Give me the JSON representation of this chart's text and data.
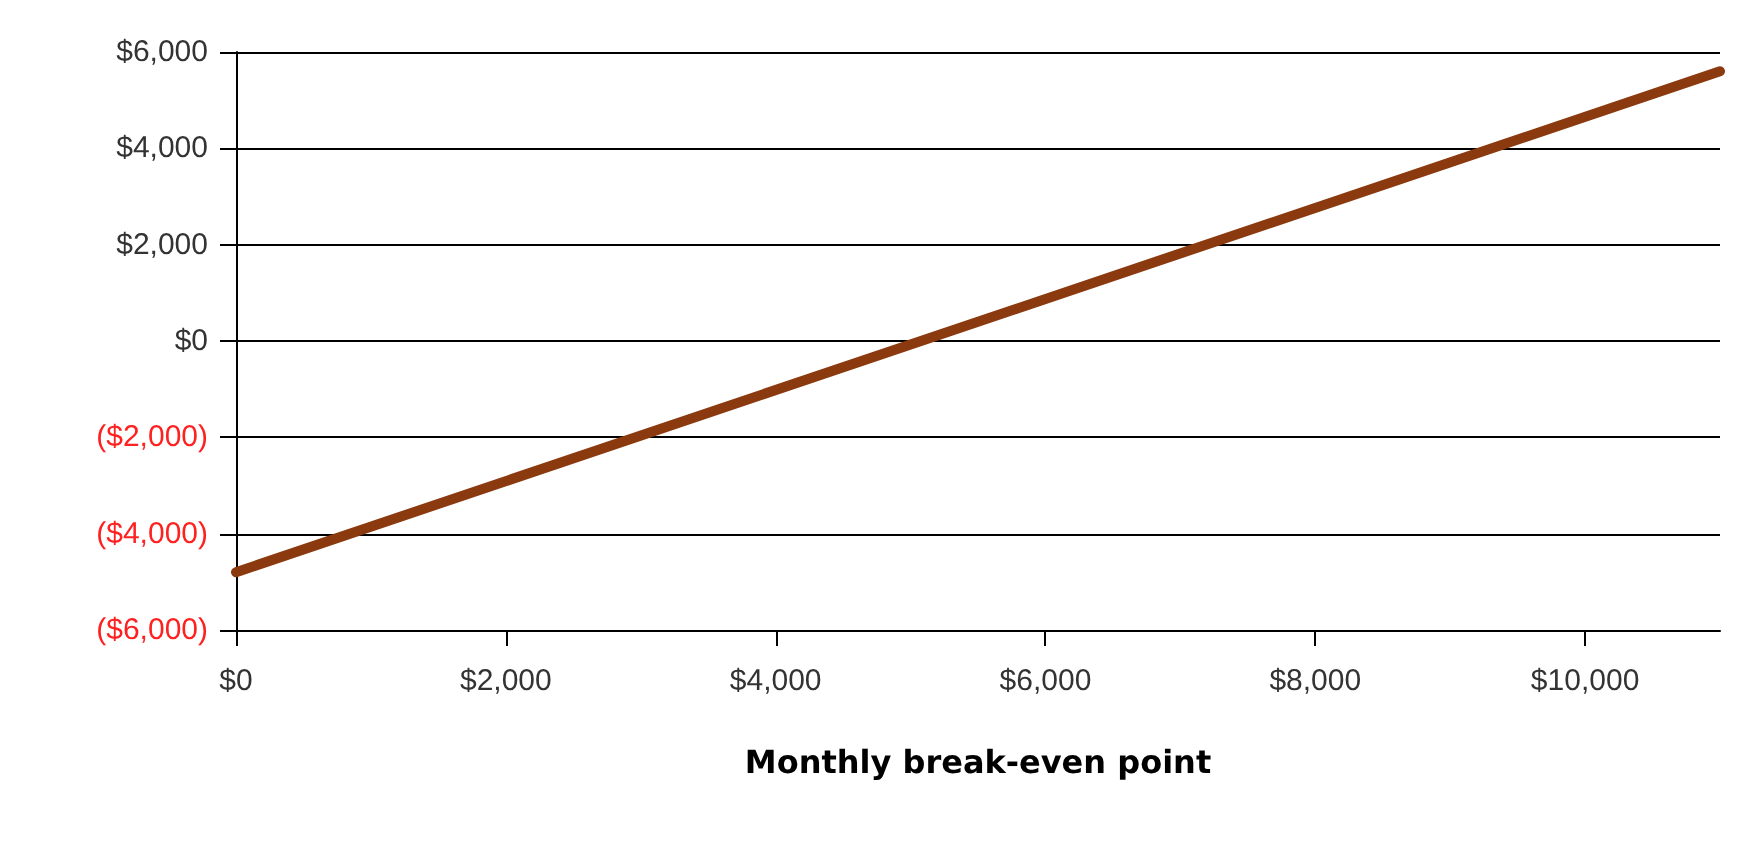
{
  "chart_data": {
    "type": "line",
    "xlabel": "Monthly break-even point",
    "x": [
      0,
      11000
    ],
    "series": [
      {
        "color": "#8b3a0f",
        "values": [
          -4800,
          5600
        ]
      }
    ],
    "xlim": [
      0,
      11000
    ],
    "xticks": [
      {
        "value": 0,
        "label": "$0"
      },
      {
        "value": 2000,
        "label": "$2,000"
      },
      {
        "value": 4000,
        "label": "$4,000"
      },
      {
        "value": 6000,
        "label": "$6,000"
      },
      {
        "value": 8000,
        "label": "$8,000"
      },
      {
        "value": 10000,
        "label": "$10,000"
      }
    ],
    "ylim": [
      -6000,
      6000
    ],
    "yticks": [
      {
        "value": -6000,
        "label": "($6,000)"
      },
      {
        "value": -4000,
        "label": "($4,000)"
      },
      {
        "value": -2000,
        "label": "($2,000)"
      },
      {
        "value": 0,
        "label": "$0"
      },
      {
        "value": 2000,
        "label": "$2,000"
      },
      {
        "value": 4000,
        "label": "$4,000"
      },
      {
        "value": 6000,
        "label": "$6,000"
      }
    ],
    "grid": "y",
    "marker": "none",
    "line_style": "solid"
  }
}
